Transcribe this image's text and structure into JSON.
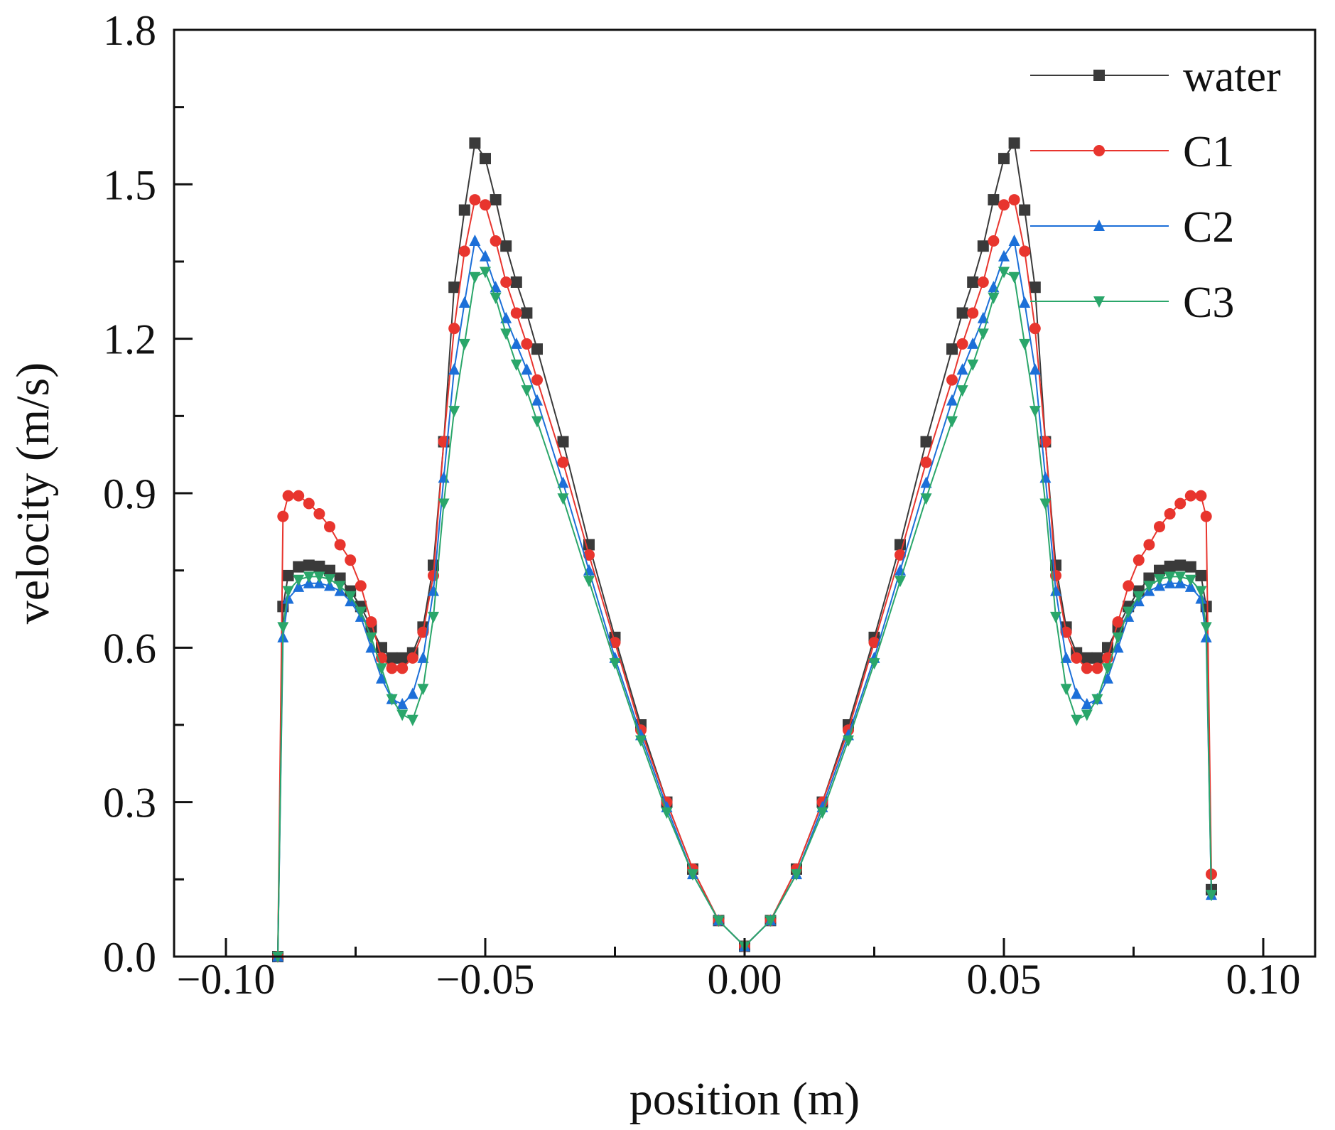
{
  "chart_data": {
    "type": "line",
    "title": "",
    "xlabel": "position (m)",
    "ylabel": "velocity (m/s)",
    "xlim": [
      -0.11,
      0.11
    ],
    "ylim": [
      0.0,
      1.8
    ],
    "xticks": [
      -0.1,
      -0.05,
      0.0,
      0.05,
      0.1
    ],
    "xtick_labels": [
      "−0.10",
      "−0.05",
      "0.00",
      "0.05",
      "0.10"
    ],
    "yticks": [
      0.0,
      0.3,
      0.6,
      0.9,
      1.2,
      1.5,
      1.8
    ],
    "ytick_labels": [
      "0.0",
      "0.3",
      "0.6",
      "0.9",
      "1.2",
      "1.5",
      "1.8"
    ],
    "grid": false,
    "legend_position": "top-right",
    "series": [
      {
        "name": "water",
        "color": "#3a3a3a",
        "marker": "square",
        "x": [
          -0.09,
          -0.089,
          -0.088,
          -0.086,
          -0.084,
          -0.082,
          -0.08,
          -0.078,
          -0.076,
          -0.074,
          -0.072,
          -0.07,
          -0.068,
          -0.066,
          -0.064,
          -0.062,
          -0.06,
          -0.058,
          -0.056,
          -0.054,
          -0.052,
          -0.05,
          -0.048,
          -0.046,
          -0.044,
          -0.042,
          -0.04,
          -0.035,
          -0.03,
          -0.025,
          -0.02,
          -0.015,
          -0.01,
          -0.005,
          0.0,
          0.005,
          0.01,
          0.015,
          0.02,
          0.025,
          0.03,
          0.035,
          0.04,
          0.042,
          0.044,
          0.046,
          0.048,
          0.05,
          0.052,
          0.054,
          0.056,
          0.058,
          0.06,
          0.062,
          0.064,
          0.066,
          0.068,
          0.07,
          0.072,
          0.074,
          0.076,
          0.078,
          0.08,
          0.082,
          0.084,
          0.086,
          0.088,
          0.089,
          0.09
        ],
        "y": [
          0.0,
          0.68,
          0.74,
          0.757,
          0.76,
          0.758,
          0.75,
          0.735,
          0.71,
          0.68,
          0.64,
          0.6,
          0.58,
          0.58,
          0.59,
          0.64,
          0.76,
          1.0,
          1.3,
          1.45,
          1.58,
          1.55,
          1.47,
          1.38,
          1.31,
          1.25,
          1.18,
          1.0,
          0.8,
          0.62,
          0.45,
          0.3,
          0.17,
          0.07,
          0.02,
          0.07,
          0.17,
          0.3,
          0.45,
          0.62,
          0.8,
          1.0,
          1.18,
          1.25,
          1.31,
          1.38,
          1.47,
          1.55,
          1.58,
          1.45,
          1.3,
          1.0,
          0.76,
          0.64,
          0.59,
          0.58,
          0.58,
          0.6,
          0.64,
          0.68,
          0.71,
          0.735,
          0.75,
          0.758,
          0.76,
          0.757,
          0.74,
          0.68,
          0.13
        ]
      },
      {
        "name": "C1",
        "color": "#e8352e",
        "marker": "circle",
        "x": [
          -0.09,
          -0.089,
          -0.088,
          -0.086,
          -0.084,
          -0.082,
          -0.08,
          -0.078,
          -0.076,
          -0.074,
          -0.072,
          -0.07,
          -0.068,
          -0.066,
          -0.064,
          -0.062,
          -0.06,
          -0.058,
          -0.056,
          -0.054,
          -0.052,
          -0.05,
          -0.048,
          -0.046,
          -0.044,
          -0.042,
          -0.04,
          -0.035,
          -0.03,
          -0.025,
          -0.02,
          -0.015,
          -0.01,
          -0.005,
          0.0,
          0.005,
          0.01,
          0.015,
          0.02,
          0.025,
          0.03,
          0.035,
          0.04,
          0.042,
          0.044,
          0.046,
          0.048,
          0.05,
          0.052,
          0.054,
          0.056,
          0.058,
          0.06,
          0.062,
          0.064,
          0.066,
          0.068,
          0.07,
          0.072,
          0.074,
          0.076,
          0.078,
          0.08,
          0.082,
          0.084,
          0.086,
          0.088,
          0.089,
          0.09
        ],
        "y": [
          0.0,
          0.855,
          0.895,
          0.895,
          0.88,
          0.86,
          0.835,
          0.8,
          0.77,
          0.72,
          0.65,
          0.58,
          0.56,
          0.56,
          0.58,
          0.63,
          0.74,
          1.0,
          1.22,
          1.37,
          1.47,
          1.46,
          1.39,
          1.31,
          1.25,
          1.19,
          1.12,
          0.96,
          0.78,
          0.61,
          0.44,
          0.3,
          0.17,
          0.07,
          0.02,
          0.07,
          0.17,
          0.3,
          0.44,
          0.61,
          0.78,
          0.96,
          1.12,
          1.19,
          1.25,
          1.31,
          1.39,
          1.46,
          1.47,
          1.37,
          1.22,
          1.0,
          0.74,
          0.63,
          0.58,
          0.56,
          0.56,
          0.58,
          0.65,
          0.72,
          0.77,
          0.8,
          0.835,
          0.86,
          0.88,
          0.895,
          0.895,
          0.855,
          0.16
        ]
      },
      {
        "name": "C2",
        "color": "#1c6fd8",
        "marker": "triangle-up",
        "x": [
          -0.09,
          -0.089,
          -0.088,
          -0.086,
          -0.084,
          -0.082,
          -0.08,
          -0.078,
          -0.076,
          -0.074,
          -0.072,
          -0.07,
          -0.068,
          -0.066,
          -0.064,
          -0.062,
          -0.06,
          -0.058,
          -0.056,
          -0.054,
          -0.052,
          -0.05,
          -0.048,
          -0.046,
          -0.044,
          -0.042,
          -0.04,
          -0.035,
          -0.03,
          -0.025,
          -0.02,
          -0.015,
          -0.01,
          -0.005,
          0.0,
          0.005,
          0.01,
          0.015,
          0.02,
          0.025,
          0.03,
          0.035,
          0.04,
          0.042,
          0.044,
          0.046,
          0.048,
          0.05,
          0.052,
          0.054,
          0.056,
          0.058,
          0.06,
          0.062,
          0.064,
          0.066,
          0.068,
          0.07,
          0.072,
          0.074,
          0.076,
          0.078,
          0.08,
          0.082,
          0.084,
          0.086,
          0.088,
          0.089,
          0.09
        ],
        "y": [
          0.0,
          0.62,
          0.695,
          0.718,
          0.725,
          0.725,
          0.72,
          0.71,
          0.69,
          0.66,
          0.6,
          0.54,
          0.5,
          0.49,
          0.51,
          0.58,
          0.71,
          0.93,
          1.14,
          1.27,
          1.39,
          1.36,
          1.3,
          1.24,
          1.19,
          1.14,
          1.08,
          0.92,
          0.75,
          0.58,
          0.43,
          0.29,
          0.16,
          0.07,
          0.02,
          0.07,
          0.16,
          0.29,
          0.43,
          0.58,
          0.75,
          0.92,
          1.08,
          1.14,
          1.19,
          1.24,
          1.3,
          1.36,
          1.39,
          1.27,
          1.14,
          0.93,
          0.71,
          0.58,
          0.51,
          0.49,
          0.5,
          0.54,
          0.6,
          0.66,
          0.69,
          0.71,
          0.72,
          0.725,
          0.725,
          0.718,
          0.695,
          0.62,
          0.12
        ]
      },
      {
        "name": "C3",
        "color": "#2aa66a",
        "marker": "triangle-down",
        "x": [
          -0.09,
          -0.089,
          -0.088,
          -0.086,
          -0.084,
          -0.082,
          -0.08,
          -0.078,
          -0.076,
          -0.074,
          -0.072,
          -0.07,
          -0.068,
          -0.066,
          -0.064,
          -0.062,
          -0.06,
          -0.058,
          -0.056,
          -0.054,
          -0.052,
          -0.05,
          -0.048,
          -0.046,
          -0.044,
          -0.042,
          -0.04,
          -0.035,
          -0.03,
          -0.025,
          -0.02,
          -0.015,
          -0.01,
          -0.005,
          0.0,
          0.005,
          0.01,
          0.015,
          0.02,
          0.025,
          0.03,
          0.035,
          0.04,
          0.042,
          0.044,
          0.046,
          0.048,
          0.05,
          0.052,
          0.054,
          0.056,
          0.058,
          0.06,
          0.062,
          0.064,
          0.066,
          0.068,
          0.07,
          0.072,
          0.074,
          0.076,
          0.078,
          0.08,
          0.082,
          0.084,
          0.086,
          0.088,
          0.089,
          0.09
        ],
        "y": [
          0.0,
          0.64,
          0.71,
          0.732,
          0.738,
          0.738,
          0.733,
          0.72,
          0.7,
          0.67,
          0.62,
          0.56,
          0.5,
          0.47,
          0.46,
          0.52,
          0.66,
          0.88,
          1.06,
          1.19,
          1.32,
          1.33,
          1.28,
          1.21,
          1.15,
          1.1,
          1.04,
          0.89,
          0.73,
          0.57,
          0.42,
          0.28,
          0.16,
          0.07,
          0.02,
          0.07,
          0.16,
          0.28,
          0.42,
          0.57,
          0.73,
          0.89,
          1.04,
          1.1,
          1.15,
          1.21,
          1.28,
          1.33,
          1.32,
          1.19,
          1.06,
          0.88,
          0.66,
          0.52,
          0.46,
          0.47,
          0.5,
          0.56,
          0.62,
          0.67,
          0.7,
          0.72,
          0.733,
          0.738,
          0.738,
          0.732,
          0.71,
          0.64,
          0.12
        ]
      }
    ]
  }
}
